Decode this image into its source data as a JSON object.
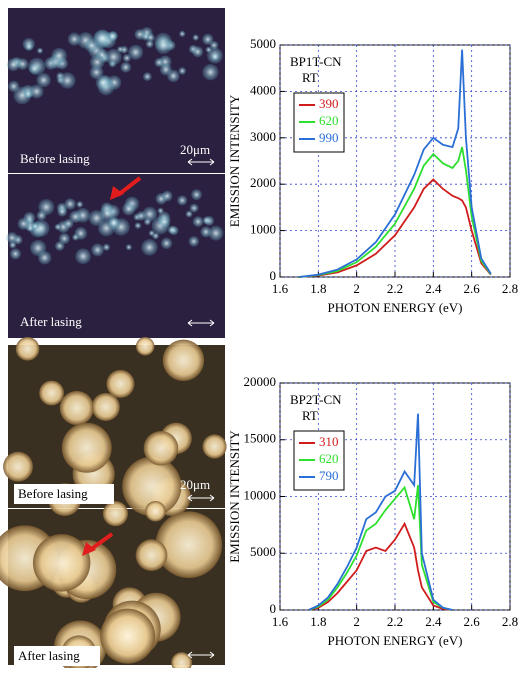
{
  "chart_data": [
    {
      "type": "line",
      "title": "BP1T-CN",
      "subtitle": "RT",
      "xlabel": "PHOTON ENERGY (eV)",
      "ylabel": "EMISSION INTENSITY",
      "xlim": [
        1.6,
        2.8
      ],
      "xticks": [
        1.6,
        1.8,
        2,
        2.2,
        2.4,
        2.6,
        2.8
      ],
      "ylim": [
        0,
        5000
      ],
      "yticks": [
        0,
        1000,
        2000,
        3000,
        4000,
        5000
      ],
      "grid": true,
      "x": [
        1.7,
        1.8,
        1.9,
        2.0,
        2.1,
        2.2,
        2.3,
        2.35,
        2.4,
        2.45,
        2.5,
        2.53,
        2.55,
        2.57,
        2.6,
        2.65,
        2.7
      ],
      "series": [
        {
          "name": "390",
          "color": "#d01c1c",
          "values": [
            0,
            30,
            100,
            250,
            500,
            900,
            1500,
            1900,
            2100,
            1900,
            1750,
            1700,
            1650,
            1500,
            1000,
            300,
            50
          ]
        },
        {
          "name": "620",
          "color": "#2ee02e",
          "values": [
            0,
            40,
            130,
            320,
            650,
            1150,
            1900,
            2400,
            2650,
            2450,
            2350,
            2500,
            2800,
            2300,
            1300,
            350,
            60
          ]
        },
        {
          "name": "990",
          "color": "#2a6fd6",
          "values": [
            0,
            50,
            160,
            380,
            750,
            1350,
            2200,
            2750,
            3000,
            2850,
            2800,
            3200,
            4900,
            3000,
            1500,
            400,
            70
          ]
        }
      ]
    },
    {
      "type": "line",
      "title": "BP2T-CN",
      "subtitle": "RT",
      "xlabel": "PHOTON ENERGY (eV)",
      "ylabel": "EMISSION INTENSITY",
      "xlim": [
        1.6,
        2.8
      ],
      "xticks": [
        1.6,
        1.8,
        2,
        2.2,
        2.4,
        2.6,
        2.8
      ],
      "ylim": [
        0,
        20000
      ],
      "yticks": [
        0,
        5000,
        10000,
        15000,
        20000
      ],
      "grid": true,
      "x": [
        1.75,
        1.8,
        1.85,
        1.9,
        1.95,
        2.0,
        2.05,
        2.1,
        2.15,
        2.2,
        2.25,
        2.3,
        2.32,
        2.34,
        2.4,
        2.45,
        2.5
      ],
      "series": [
        {
          "name": "310",
          "color": "#d01c1c",
          "values": [
            0,
            200,
            700,
            1500,
            2500,
            3500,
            5200,
            5500,
            5200,
            6200,
            7600,
            5500,
            3500,
            2000,
            400,
            100,
            0
          ]
        },
        {
          "name": "620",
          "color": "#2ee02e",
          "values": [
            0,
            300,
            900,
            2000,
            3300,
            4800,
            7000,
            7600,
            8800,
            9800,
            10800,
            8000,
            11000,
            4000,
            700,
            200,
            0
          ]
        },
        {
          "name": "790",
          "color": "#2a6fd6",
          "values": [
            0,
            400,
            1100,
            2300,
            3800,
            5500,
            8000,
            8600,
            10000,
            10500,
            12200,
            11000,
            17300,
            5000,
            900,
            200,
            0
          ]
        }
      ]
    }
  ],
  "micrographs": [
    {
      "before_label": "Before lasing",
      "after_label": "After lasing",
      "scale_label": "20μm"
    },
    {
      "before_label": "Before lasing",
      "after_label": "After lasing",
      "scale_label": "20μm"
    }
  ]
}
